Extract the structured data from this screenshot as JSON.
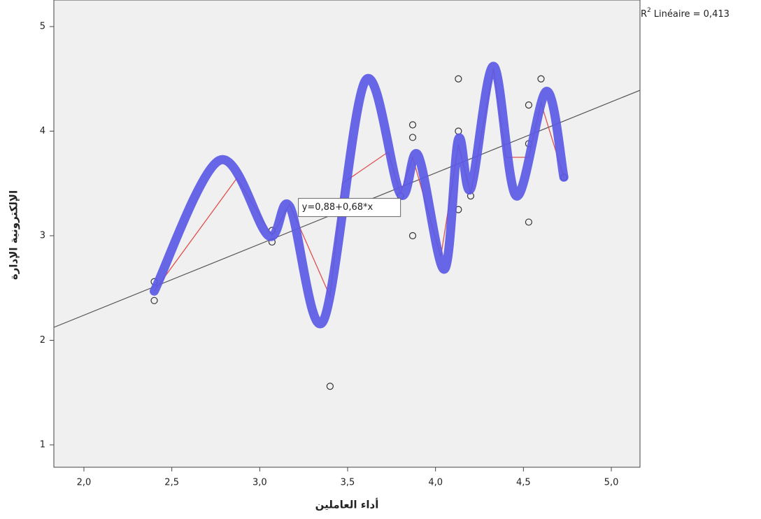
{
  "chart_data": {
    "type": "scatter",
    "x_label": "أداء العاملين",
    "y_label": "الإلكترونية الإدارة",
    "xlim": [
      1.829,
      5.163
    ],
    "ylim": [
      0.786,
      5.254
    ],
    "xticks": [
      {
        "value": 2,
        "label": "2,0"
      },
      {
        "value": 2.5,
        "label": "2,5"
      },
      {
        "value": 3,
        "label": "3,0"
      },
      {
        "value": 3.5,
        "label": "3,5"
      },
      {
        "value": 4,
        "label": "4,0"
      },
      {
        "value": 4.5,
        "label": "4,5"
      },
      {
        "value": 5,
        "label": "5,0"
      }
    ],
    "yticks": [
      1,
      2,
      3,
      4,
      5
    ],
    "points": {
      "color": "#333333",
      "x": [
        2.4,
        2.4,
        3.07,
        3.07,
        3.4,
        3.87,
        3.87,
        3.87,
        3.8,
        4.13,
        4.13,
        4.13,
        4.2,
        4.53,
        4.53,
        4.53,
        4.6,
        4.73
      ],
      "y": [
        2.56,
        2.38,
        3.05,
        2.94,
        1.56,
        4.06,
        3.94,
        3.0,
        3.38,
        4.5,
        4.0,
        3.25,
        3.38,
        4.25,
        3.88,
        3.13,
        4.5,
        3.56
      ]
    },
    "fit_line": {
      "color": "#555555",
      "intercept": 0.88,
      "slope": 0.68,
      "label": "y=0,88+0,68*x"
    },
    "interpolation": {
      "color": "#e05050",
      "x": [
        2.4,
        2.87,
        3.07,
        3.17,
        3.4,
        3.47,
        3.73,
        3.8,
        3.87,
        4.03,
        4.13,
        4.2,
        4.33,
        4.4,
        4.53,
        4.6,
        4.73
      ],
      "y": [
        2.47,
        3.55,
        3.0,
        3.3,
        2.42,
        3.5,
        3.8,
        3.4,
        3.75,
        2.8,
        3.87,
        3.4,
        4.6,
        3.75,
        3.75,
        4.27,
        3.56
      ]
    },
    "spline": {
      "color": "#5a5ae6",
      "x": [
        2.4,
        2.77,
        3.05,
        3.17,
        3.36,
        3.6,
        3.8,
        3.9,
        4.05,
        4.13,
        4.2,
        4.33,
        4.46,
        4.63,
        4.73
      ],
      "y": [
        2.47,
        3.72,
        3.0,
        3.28,
        2.18,
        4.48,
        3.4,
        3.77,
        2.68,
        3.92,
        3.45,
        4.62,
        3.38,
        4.38,
        3.56
      ]
    },
    "r_squared": {
      "symbol": "R",
      "superscript": "2",
      "text": "Linéaire = 0,413"
    }
  }
}
